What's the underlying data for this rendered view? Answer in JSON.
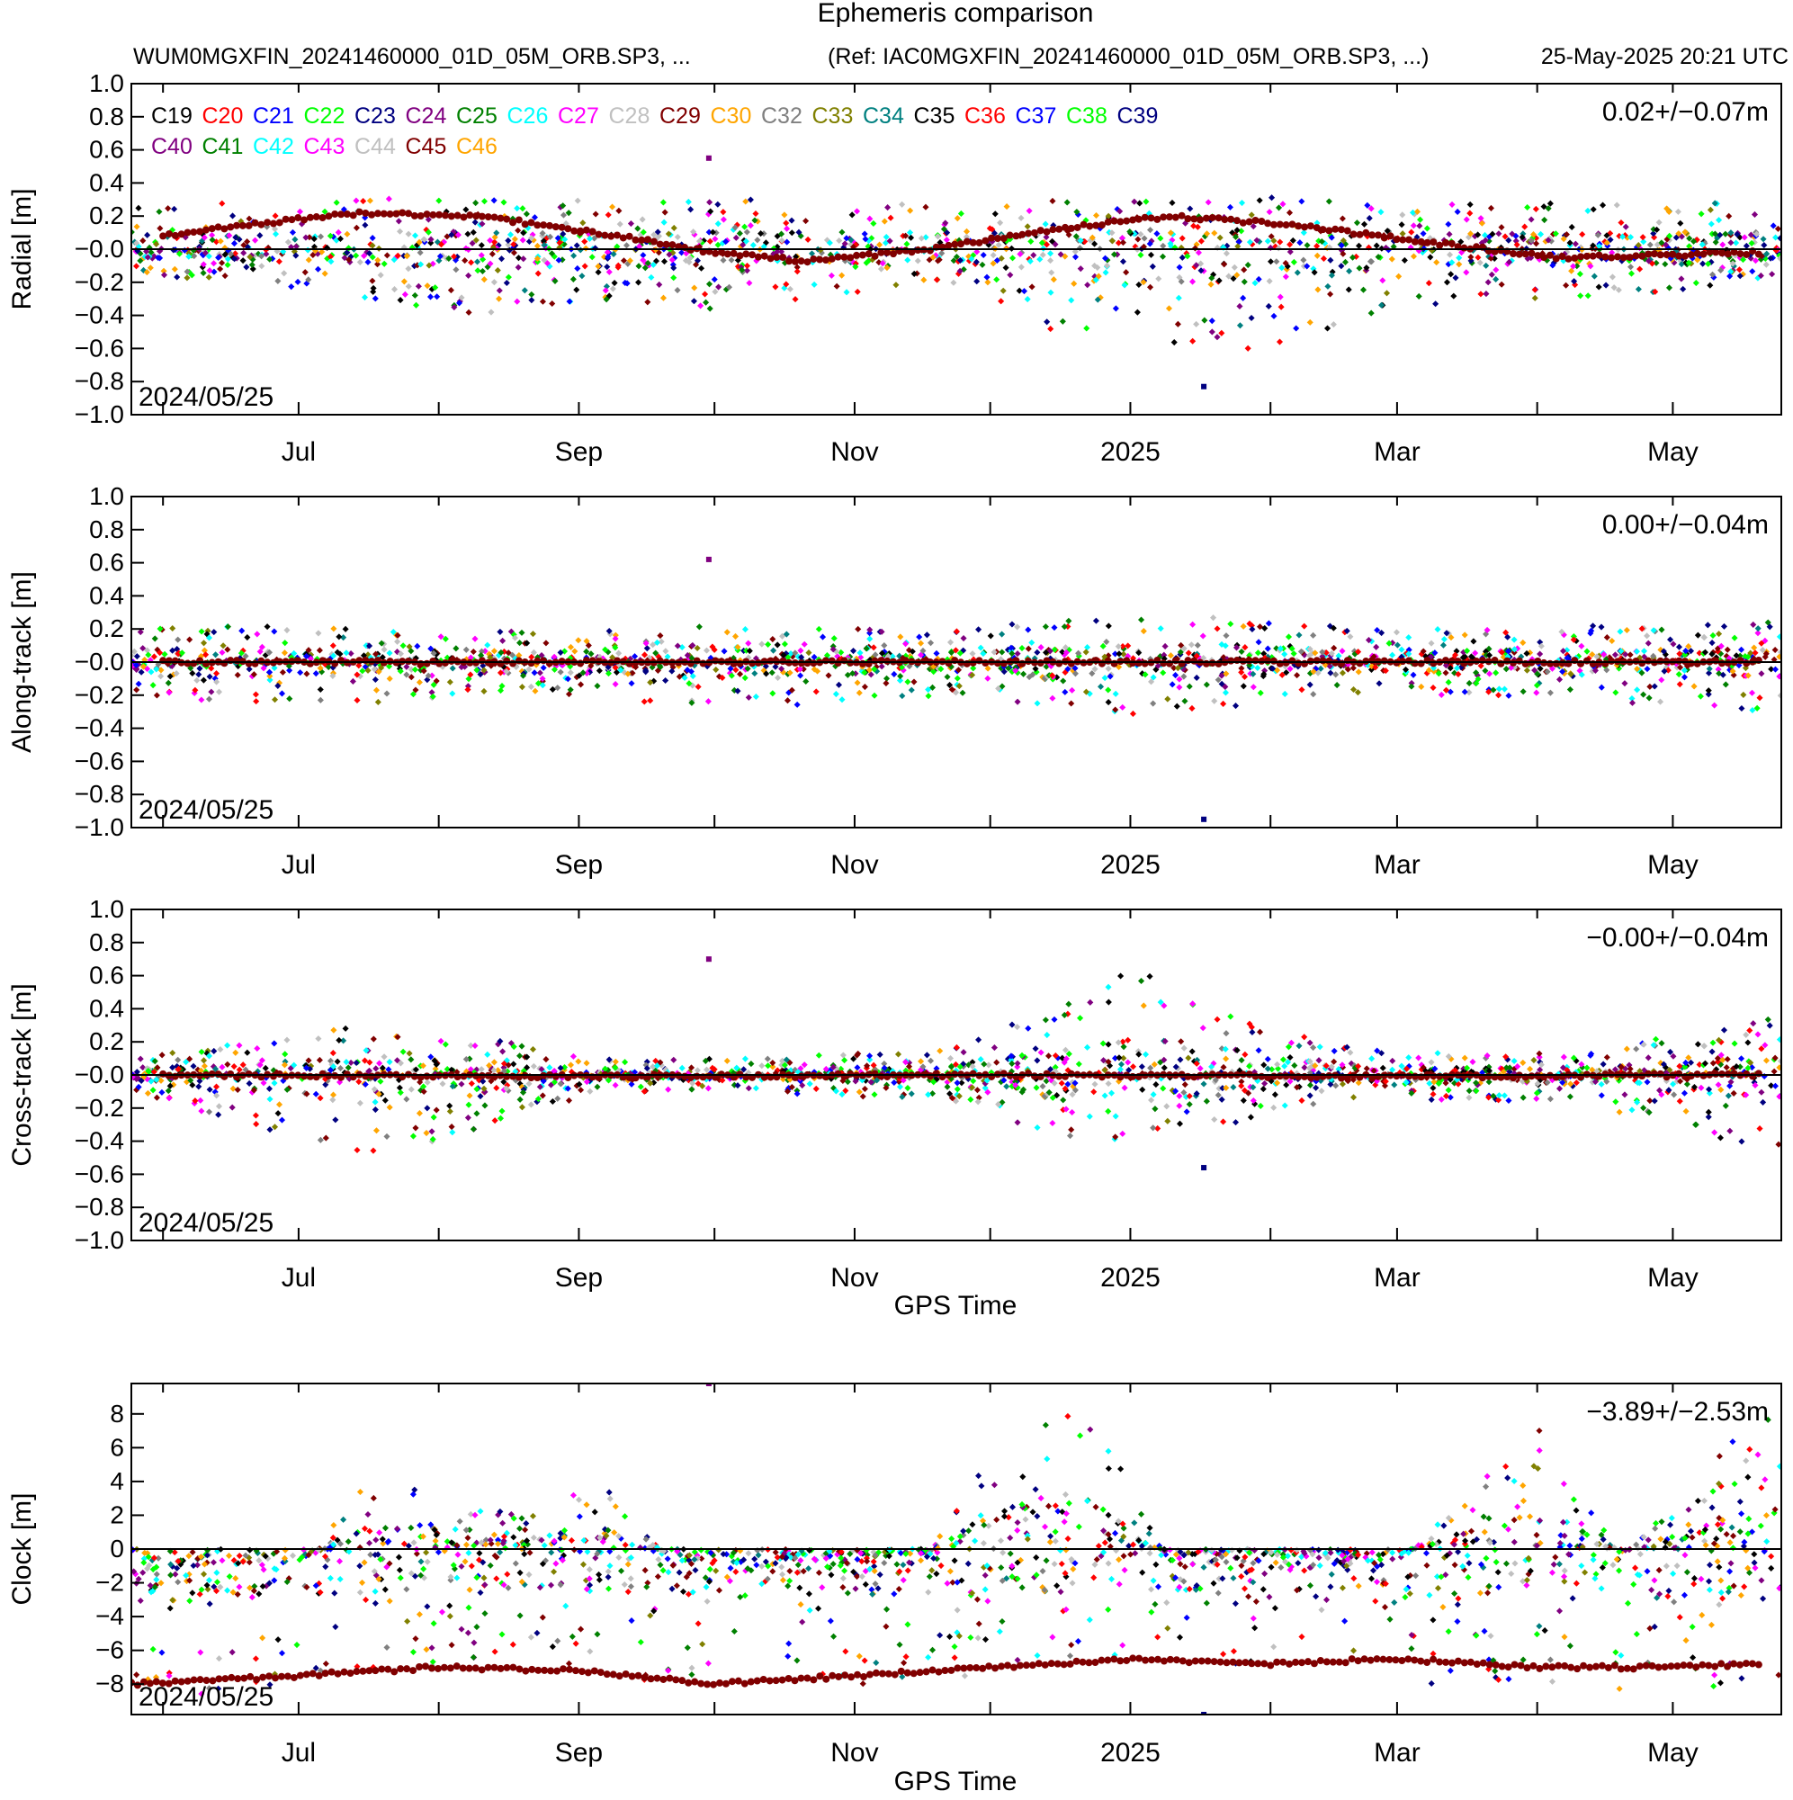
{
  "header": {
    "title": "Ephemeris comparison",
    "file": "WUM0MGXFIN_20241460000_01D_05M_ORB.SP3, ...",
    "ref": "(Ref: IAC0MGXFIN_20241460000_01D_05M_ORB.SP3, ...)",
    "timestamp": "25-May-2025 20:21 UTC"
  },
  "colors": {
    "axis": "#000000",
    "background": "#ffffff"
  },
  "legend": [
    {
      "name": "C19",
      "color": "#000000"
    },
    {
      "name": "C20",
      "color": "#ff0000"
    },
    {
      "name": "C21",
      "color": "#0000ff"
    },
    {
      "name": "C22",
      "color": "#00ff00"
    },
    {
      "name": "C23",
      "color": "#000080"
    },
    {
      "name": "C24",
      "color": "#800080"
    },
    {
      "name": "C25",
      "color": "#008000"
    },
    {
      "name": "C26",
      "color": "#00ffff"
    },
    {
      "name": "C27",
      "color": "#ff00ff"
    },
    {
      "name": "C28",
      "color": "#c0c0c0"
    },
    {
      "name": "C29",
      "color": "#800000"
    },
    {
      "name": "C30",
      "color": "#ffa500"
    },
    {
      "name": "C32",
      "color": "#808080"
    },
    {
      "name": "C33",
      "color": "#808000"
    },
    {
      "name": "C34",
      "color": "#008080"
    },
    {
      "name": "C35",
      "color": "#000000"
    },
    {
      "name": "C36",
      "color": "#ff0000"
    },
    {
      "name": "C37",
      "color": "#0000ff"
    },
    {
      "name": "C38",
      "color": "#00ff00"
    },
    {
      "name": "C39",
      "color": "#000080"
    },
    {
      "name": "C40",
      "color": "#800080"
    },
    {
      "name": "C41",
      "color": "#008000"
    },
    {
      "name": "C42",
      "color": "#00ffff"
    },
    {
      "name": "C43",
      "color": "#ff00ff"
    },
    {
      "name": "C44",
      "color": "#c0c0c0"
    },
    {
      "name": "C45",
      "color": "#800000"
    },
    {
      "name": "C46",
      "color": "#ffa500"
    }
  ],
  "chart_data": [
    {
      "type": "scatter",
      "ylabel": "Radial [m]",
      "xlabel": "",
      "ylim": [
        -1.0,
        1.0
      ],
      "yticks": [
        "1.0",
        "0.8",
        "0.6",
        "0.4",
        "0.2",
        "-0.0",
        "-0.2",
        "-0.4",
        "-0.6",
        "-0.8",
        "-1.0"
      ],
      "stat": "0.02+/-0.07m",
      "start_label": "2024/05/25",
      "xticks": [
        "Jul",
        "Sep",
        "Nov",
        "2025",
        "Mar",
        "May"
      ],
      "zero_line": true,
      "envelope": {
        "x": [
          "2024-05-25",
          "2024-06-20",
          "2024-07-15",
          "2024-08-10",
          "2024-09-05",
          "2024-10-01",
          "2024-10-25",
          "2024-11-20",
          "2024-12-15",
          "2025-01-05",
          "2025-01-30",
          "2025-02-25",
          "2025-03-20",
          "2025-04-15",
          "2025-05-20"
        ],
        "upper": [
          0.25,
          0.3,
          0.3,
          0.32,
          0.3,
          0.3,
          0.3,
          0.26,
          0.3,
          0.3,
          0.32,
          0.28,
          0.28,
          0.28,
          0.3
        ],
        "lower": [
          -0.15,
          -0.2,
          -0.3,
          -0.4,
          -0.3,
          -0.4,
          -0.3,
          -0.2,
          -0.5,
          -0.7,
          -0.6,
          -0.4,
          -0.3,
          -0.3,
          -0.2
        ],
        "extremes": [
          0.55,
          -0.83
        ]
      },
      "trend": {
        "name": "C45",
        "x": [
          "2024-06-01",
          "2024-06-20",
          "2024-07-15",
          "2024-08-10",
          "2024-09-05",
          "2024-10-01",
          "2024-10-20",
          "2024-11-15",
          "2024-12-15",
          "2025-01-10",
          "2025-02-05",
          "2025-03-05",
          "2025-04-05",
          "2025-05-20"
        ],
        "y": [
          0.08,
          0.15,
          0.22,
          0.2,
          0.1,
          -0.02,
          -0.07,
          -0.01,
          0.12,
          0.2,
          0.15,
          0.05,
          -0.05,
          -0.02
        ]
      }
    },
    {
      "type": "scatter",
      "ylabel": "Along-track [m]",
      "xlabel": "",
      "ylim": [
        -1.0,
        1.0
      ],
      "yticks": [
        "1.0",
        "0.8",
        "0.6",
        "0.4",
        "0.2",
        "-0.0",
        "-0.2",
        "-0.4",
        "-0.6",
        "-0.8",
        "-1.0"
      ],
      "stat": "0.00+/-0.04m",
      "start_label": "2024/05/25",
      "xticks": [
        "Jul",
        "Sep",
        "Nov",
        "2025",
        "Mar",
        "May"
      ],
      "zero_line": true,
      "envelope": {
        "x": [
          "2024-05-25",
          "2024-06-20",
          "2024-07-15",
          "2024-08-10",
          "2024-09-05",
          "2024-10-01",
          "2024-10-25",
          "2024-11-20",
          "2024-12-15",
          "2025-01-05",
          "2025-01-30",
          "2025-02-25",
          "2025-03-20",
          "2025-04-15",
          "2025-05-20"
        ],
        "upper": [
          0.2,
          0.22,
          0.2,
          0.2,
          0.2,
          0.22,
          0.2,
          0.2,
          0.25,
          0.3,
          0.25,
          0.2,
          0.2,
          0.22,
          0.25
        ],
        "lower": [
          -0.2,
          -0.25,
          -0.25,
          -0.2,
          -0.2,
          -0.3,
          -0.25,
          -0.2,
          -0.3,
          -0.35,
          -0.25,
          -0.2,
          -0.2,
          -0.25,
          -0.3
        ],
        "extremes": [
          0.62,
          -0.95
        ]
      },
      "trend": {
        "name": "C45",
        "x": [
          "2024-06-01",
          "2024-09-01",
          "2024-12-01",
          "2025-03-01",
          "2025-05-20"
        ],
        "y": [
          0.0,
          0.0,
          0.0,
          0.0,
          0.0
        ]
      }
    },
    {
      "type": "scatter",
      "ylabel": "Cross-track [m]",
      "xlabel": "GPS Time",
      "ylim": [
        -1.0,
        1.0
      ],
      "yticks": [
        "1.0",
        "0.8",
        "0.6",
        "0.4",
        "0.2",
        "-0.0",
        "-0.2",
        "-0.4",
        "-0.6",
        "-0.8",
        "-1.0"
      ],
      "stat": "-0.00+/-0.04m",
      "start_label": "2024/05/25",
      "xticks": [
        "Jul",
        "Sep",
        "Nov",
        "2025",
        "Mar",
        "May"
      ],
      "zero_line": true,
      "envelope": {
        "x": [
          "2024-05-25",
          "2024-06-20",
          "2024-07-15",
          "2024-08-10",
          "2024-09-05",
          "2024-10-01",
          "2024-10-25",
          "2024-11-20",
          "2024-12-15",
          "2025-01-05",
          "2025-01-30",
          "2025-02-25",
          "2025-03-20",
          "2025-04-15",
          "2025-05-20"
        ],
        "upper": [
          0.1,
          0.2,
          0.3,
          0.25,
          0.1,
          0.1,
          0.12,
          0.15,
          0.4,
          0.68,
          0.3,
          0.15,
          0.12,
          0.15,
          0.35
        ],
        "lower": [
          -0.1,
          -0.3,
          -0.5,
          -0.35,
          -0.1,
          -0.1,
          -0.12,
          -0.15,
          -0.4,
          -0.45,
          -0.25,
          -0.15,
          -0.15,
          -0.2,
          -0.45
        ],
        "extremes": [
          0.7,
          -0.56
        ]
      },
      "trend": {
        "name": "C45",
        "x": [
          "2024-06-01",
          "2024-09-01",
          "2024-12-01",
          "2025-03-01",
          "2025-05-20"
        ],
        "y": [
          0.0,
          -0.01,
          0.0,
          -0.01,
          0.0
        ]
      }
    },
    {
      "type": "scatter",
      "ylabel": "Clock [m]",
      "xlabel": "GPS Time",
      "ylim": [
        -9.8,
        9.8
      ],
      "yticks": [
        "8",
        "6",
        "4",
        "2",
        "0",
        "-2",
        "-4",
        "-6",
        "-8"
      ],
      "stat": "-3.89+/-2.53m",
      "start_label": "2024/05/25",
      "xticks": [
        "Jul",
        "Sep",
        "Nov",
        "2025",
        "Mar",
        "May"
      ],
      "zero_line": true,
      "envelope": {
        "x": [
          "2024-05-25",
          "2024-06-15",
          "2024-07-01",
          "2024-07-15",
          "2024-08-01",
          "2024-08-20",
          "2024-09-05",
          "2024-09-25",
          "2024-10-20",
          "2024-11-15",
          "2024-12-01",
          "2024-12-20",
          "2025-01-10",
          "2025-02-01",
          "2025-03-01",
          "2025-04-01",
          "2025-04-20",
          "2025-05-20"
        ],
        "upper": [
          -3.5,
          -2.5,
          -2.0,
          4.2,
          3.5,
          2.0,
          4.5,
          -2.0,
          -2.0,
          -1.5,
          6.0,
          9.8,
          -1.0,
          -1.5,
          -1.0,
          7.5,
          -0.5,
          8.0
        ],
        "lower": [
          -9.0,
          -8.5,
          -8.0,
          -7.5,
          -7.0,
          -7.0,
          -7.0,
          -8.5,
          -8.0,
          -8.0,
          -7.5,
          -7.0,
          -7.0,
          -7.0,
          -8.0,
          -8.0,
          -8.5,
          -8.0
        ],
        "extremes": [
          9.8,
          -9.8
        ]
      },
      "trend": {
        "name": "C45",
        "x": [
          "2024-05-25",
          "2024-07-01",
          "2024-08-01",
          "2024-09-01",
          "2024-10-01",
          "2024-11-01",
          "2024-12-01",
          "2025-01-01",
          "2025-02-01",
          "2025-03-01",
          "2025-04-01",
          "2025-05-01",
          "2025-05-20"
        ],
        "y": [
          -8.0,
          -7.5,
          -7.0,
          -7.2,
          -8.0,
          -7.5,
          -7.0,
          -6.5,
          -6.8,
          -6.5,
          -7.0,
          -7.0,
          -6.8
        ]
      }
    }
  ]
}
